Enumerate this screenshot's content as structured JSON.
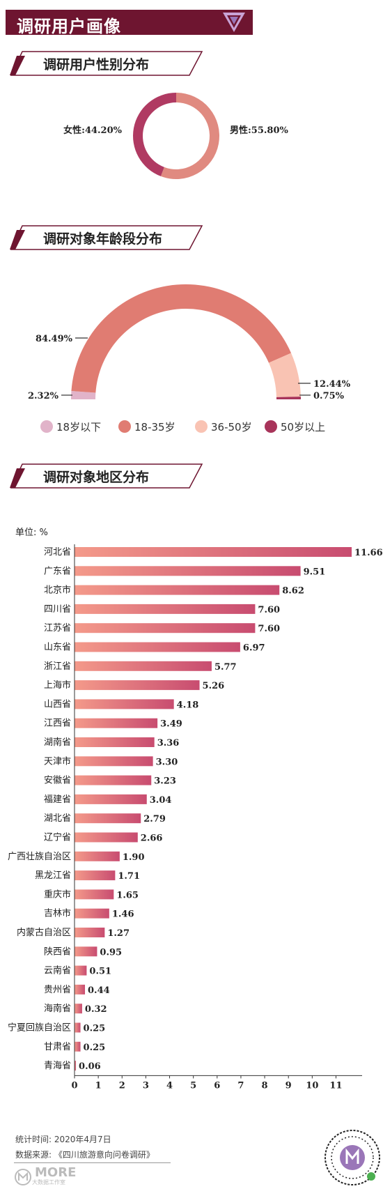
{
  "header": {
    "title": "调研用户画像"
  },
  "sections": {
    "gender": "调研用户性别分布",
    "age": "调研对象年龄段分布",
    "region": "调研对象地区分布"
  },
  "colors": {
    "brand": "#6e1530",
    "female": "#b03a62",
    "male": "#e08a80",
    "age_under18": "#e1b3c9",
    "age_18_35": "#e07c72",
    "age_36_50": "#f9c3b3",
    "age_over50": "#a8345a",
    "bar_start": "#f49a8a",
    "bar_end": "#c84c70"
  },
  "chart_data": [
    {
      "type": "pie",
      "categories": [
        "女性",
        "男性"
      ],
      "values": [
        44.2,
        55.8
      ],
      "labels": [
        "女性:44.20%",
        "男性:55.80%"
      ],
      "donut": true
    },
    {
      "type": "pie",
      "categories": [
        "18岁以下",
        "18-35岁",
        "36-50岁",
        "50岁以上"
      ],
      "values": [
        2.32,
        84.49,
        12.44,
        0.75
      ],
      "labels": [
        "2.32%",
        "84.49%",
        "12.44%",
        "0.75%"
      ],
      "half_donut": true,
      "legend": "bottom"
    },
    {
      "type": "bar",
      "orientation": "horizontal",
      "unit_label": "单位: %",
      "categories": [
        "河北省",
        "广东省",
        "北京市",
        "四川省",
        "江苏省",
        "山东省",
        "浙江省",
        "上海市",
        "山西省",
        "江西省",
        "湖南省",
        "天津市",
        "安徽省",
        "福建省",
        "湖北省",
        "辽宁省",
        "广西壮族自治区",
        "黑龙江省",
        "重庆市",
        "吉林市",
        "内蒙古自治区",
        "陕西省",
        "云南省",
        "贵州省",
        "海南省",
        "宁夏回族自治区",
        "甘肃省",
        "青海省"
      ],
      "values": [
        11.66,
        9.51,
        8.62,
        7.6,
        7.6,
        6.97,
        5.77,
        5.26,
        4.18,
        3.49,
        3.36,
        3.3,
        3.23,
        3.04,
        2.79,
        2.66,
        1.9,
        1.71,
        1.65,
        1.46,
        1.27,
        0.95,
        0.51,
        0.44,
        0.32,
        0.25,
        0.25,
        0.06
      ],
      "value_labels": [
        "11.66",
        "9.51",
        "8.62",
        "7.60",
        "7.60",
        "6.97",
        "5.77",
        "5.26",
        "4.18",
        "3.49",
        "3.36",
        "3.30",
        "3.23",
        "3.04",
        "2.79",
        "2.66",
        "1.90",
        "1.71",
        "1.65",
        "1.46",
        "1.27",
        "0.95",
        "0.51",
        "0.44",
        "0.32",
        "0.25",
        "0.25",
        "0.06"
      ],
      "xlim": [
        0,
        11
      ],
      "xticks": [
        "0",
        "1",
        "2",
        "3",
        "4",
        "5",
        "6",
        "7",
        "8",
        "9",
        "10",
        "11"
      ],
      "grid": false
    }
  ],
  "footer": {
    "time": "统计时间: 2020年4月7日",
    "source": "数据来源: 《四川旅游意向问卷调研》",
    "brand": "MORE",
    "brand_sub": "大数据工作室"
  }
}
